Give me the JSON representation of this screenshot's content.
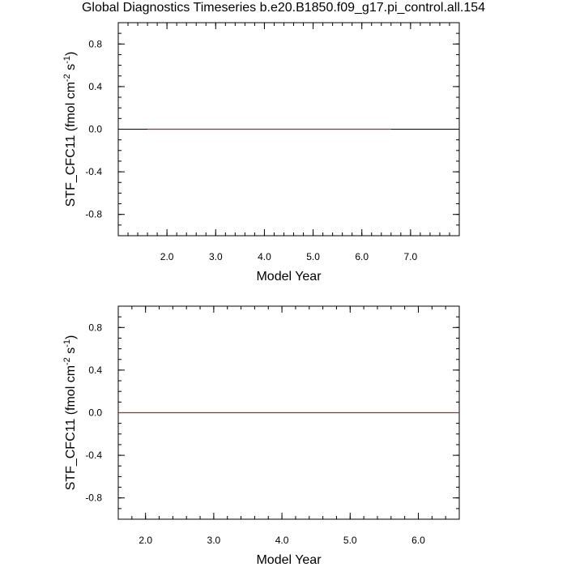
{
  "page": {
    "title": "Global Diagnostics Timeseries b.e20.B1850.f09_g17.pi_control.all.154"
  },
  "chart_data": [
    {
      "type": "line",
      "xlabel": "Model Year",
      "ylabel_parts": [
        "STF_CFC11 (fmol cm",
        "-2",
        " s",
        "-1",
        ")"
      ],
      "xlim": [
        1.0,
        8.0
      ],
      "ylim": [
        -1.0,
        1.0
      ],
      "xticks": [
        2.0,
        3.0,
        4.0,
        5.0,
        6.0,
        7.0
      ],
      "xtick_labels": [
        "2.0",
        "3.0",
        "4.0",
        "5.0",
        "6.0",
        "7.0"
      ],
      "yticks": [
        -0.8,
        -0.4,
        0.0,
        0.4,
        0.8
      ],
      "ytick_labels": [
        "-0.8",
        "-0.4",
        "0.0",
        "0.4",
        "0.8"
      ],
      "series": [
        {
          "x": [
            1.6,
            6.6
          ],
          "values": [
            0.0,
            0.0
          ],
          "color": "#b22222"
        }
      ],
      "reference_line": {
        "y": 0.0,
        "color": "#000000"
      }
    },
    {
      "type": "line",
      "xlabel": "Model Year",
      "ylabel_parts": [
        "STF_CFC11 (fmol cm",
        "-2",
        " s",
        "-1",
        ")"
      ],
      "xlim": [
        1.6,
        6.6
      ],
      "ylim": [
        -1.0,
        1.0
      ],
      "xticks": [
        2.0,
        3.0,
        4.0,
        5.0,
        6.0
      ],
      "xtick_labels": [
        "2.0",
        "3.0",
        "4.0",
        "5.0",
        "6.0"
      ],
      "yticks": [
        -0.8,
        -0.4,
        0.0,
        0.4,
        0.8
      ],
      "ytick_labels": [
        "-0.8",
        "-0.4",
        "0.0",
        "0.4",
        "0.8"
      ],
      "series": [
        {
          "x": [
            1.6,
            6.6
          ],
          "values": [
            0.0,
            0.0
          ],
          "color": "#b22222"
        }
      ],
      "reference_line": {
        "y": 0.0,
        "color": "#000000"
      }
    }
  ]
}
